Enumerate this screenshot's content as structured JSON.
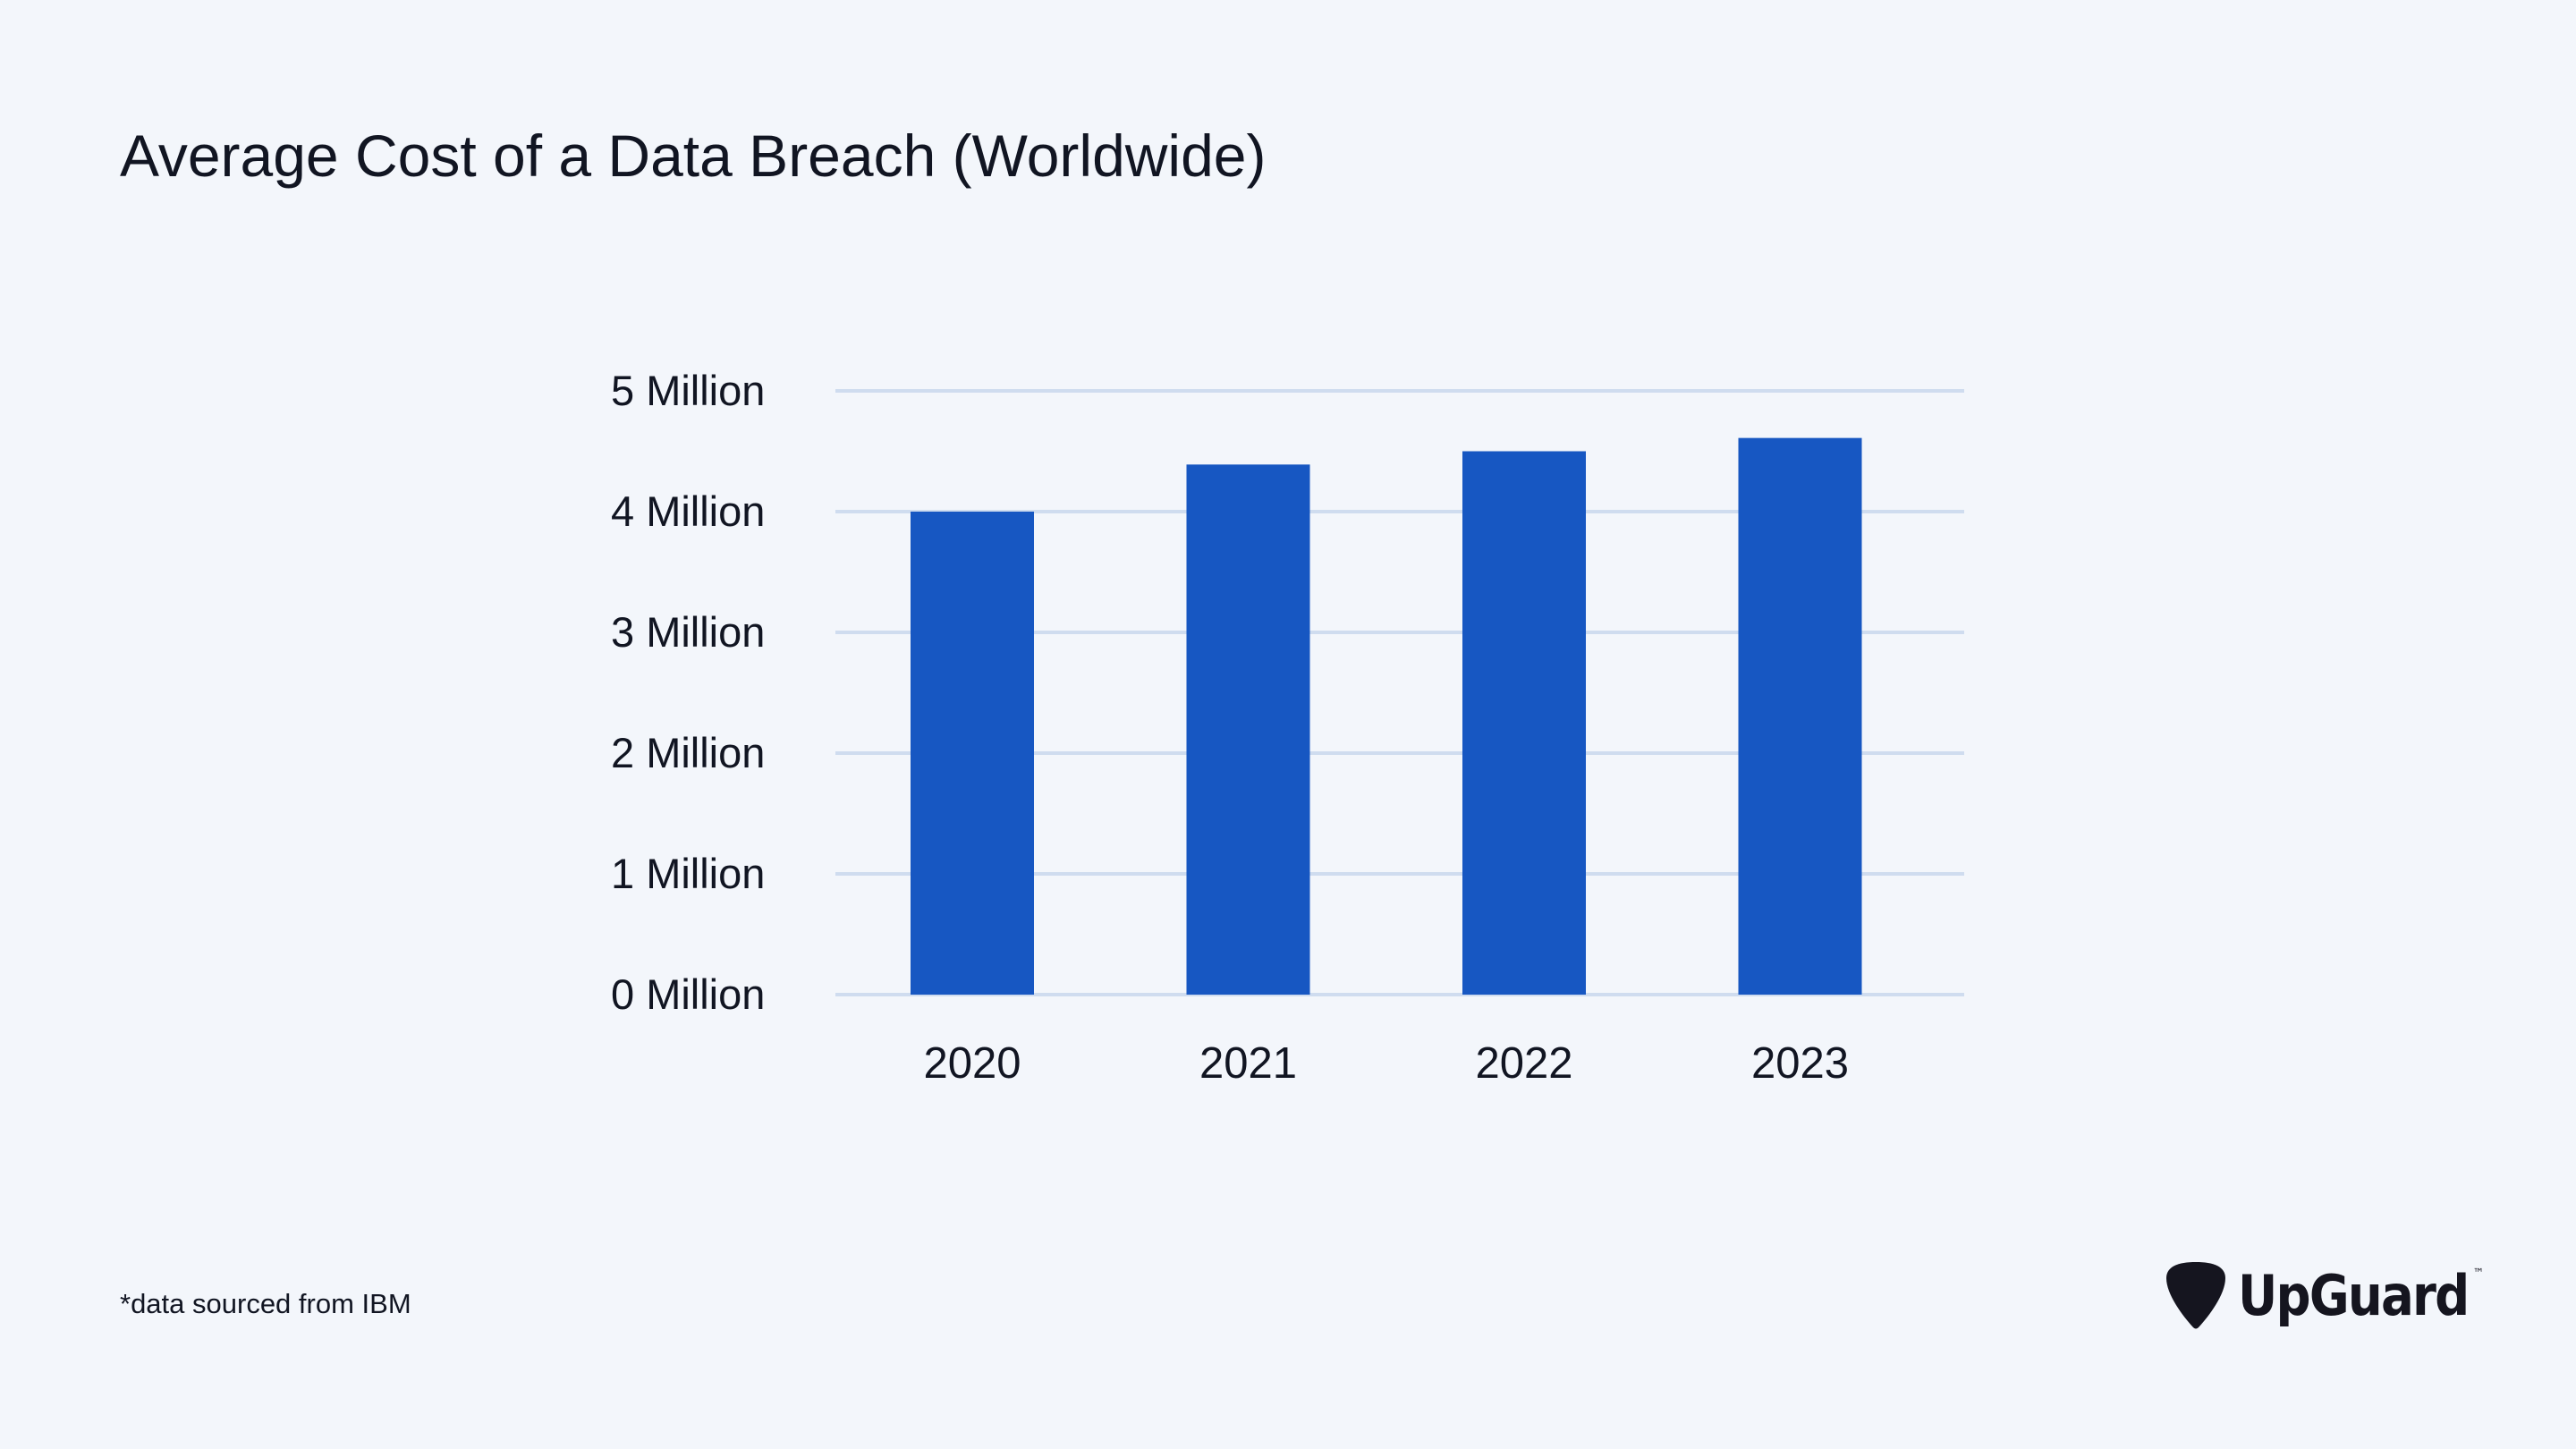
{
  "footnote": "*data sourced from IBM",
  "brand": {
    "name": "UpGuard",
    "tm": "™"
  },
  "colors": {
    "background": "#f3f6fb",
    "bar": "#1757c2",
    "grid": "#cfdcef",
    "text": "#111522"
  },
  "chart_data": {
    "type": "bar",
    "title": "Average Cost of a Data Breach (Worldwide)",
    "categories": [
      "2020",
      "2021",
      "2022",
      "2023"
    ],
    "values": [
      4.0,
      4.39,
      4.5,
      4.61
    ],
    "ylim": [
      0,
      5
    ],
    "yticks": [
      0,
      1,
      2,
      3,
      4,
      5
    ],
    "ytick_labels": [
      "0 Million",
      "1 Million",
      "2 Million",
      "3 Million",
      "4 Million",
      "5 Million"
    ],
    "grid": true,
    "legend": "none"
  }
}
